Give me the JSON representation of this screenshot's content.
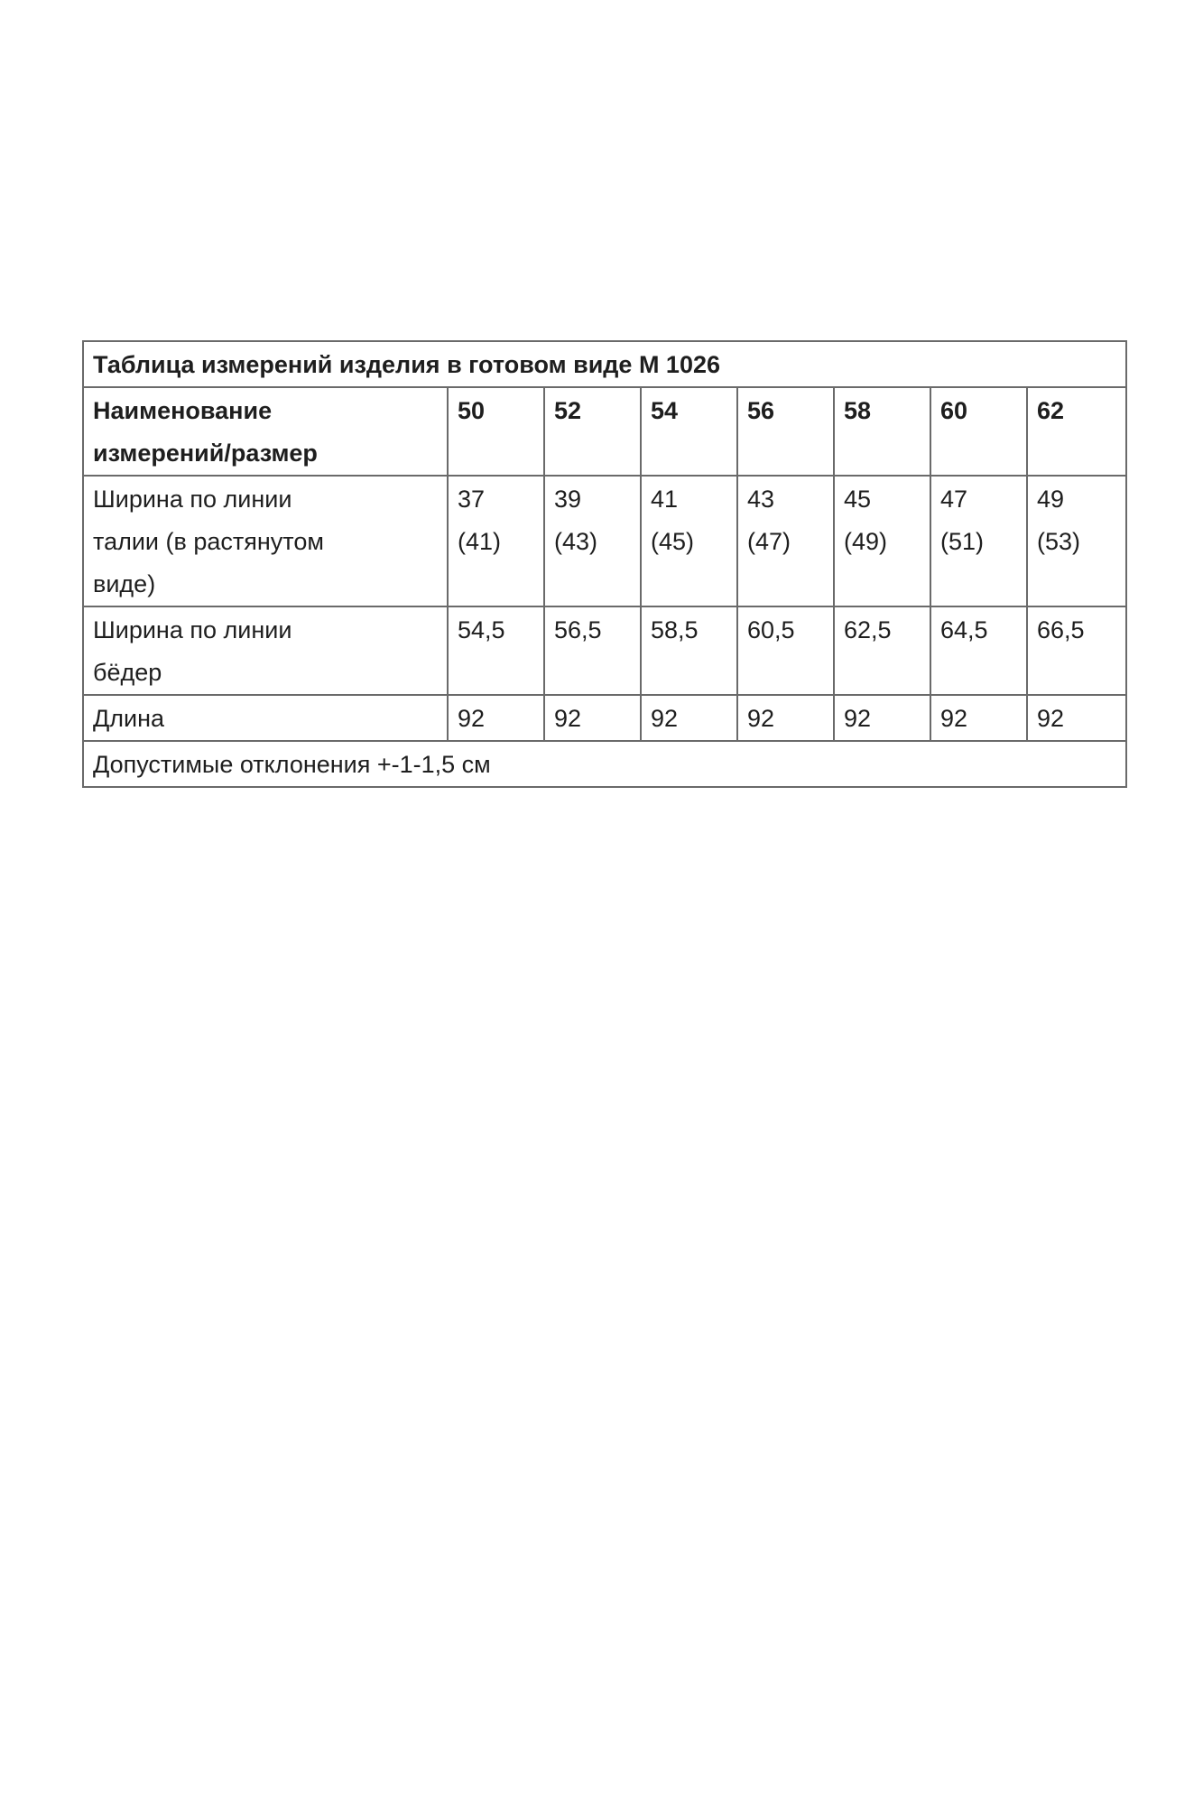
{
  "table": {
    "title": "Таблица измерений изделия в готовом виде М 1026",
    "header_label": [
      "Наименование",
      "измерений/размер"
    ],
    "sizes": [
      "50",
      "52",
      "54",
      "56",
      "58",
      "60",
      "62"
    ],
    "rows": [
      {
        "label": [
          "Ширина по линии",
          "талии (в растянутом",
          "виде)"
        ],
        "values": [
          [
            "37",
            "(41)"
          ],
          [
            "39",
            "(43)"
          ],
          [
            "41",
            "(45)"
          ],
          [
            "43",
            "(47)"
          ],
          [
            "45",
            "(49)"
          ],
          [
            "47",
            "(51)"
          ],
          [
            "49",
            "(53)"
          ]
        ]
      },
      {
        "label": [
          "Ширина по линии",
          "бёдер"
        ],
        "values": [
          [
            "54,5"
          ],
          [
            "56,5"
          ],
          [
            "58,5"
          ],
          [
            "60,5"
          ],
          [
            "62,5"
          ],
          [
            "64,5"
          ],
          [
            "66,5"
          ]
        ]
      },
      {
        "label": [
          "Длина"
        ],
        "values": [
          [
            "92"
          ],
          [
            "92"
          ],
          [
            "92"
          ],
          [
            "92"
          ],
          [
            "92"
          ],
          [
            "92"
          ],
          [
            "92"
          ]
        ]
      }
    ],
    "note": "Допустимые отклонения +-1-1,5 см"
  }
}
